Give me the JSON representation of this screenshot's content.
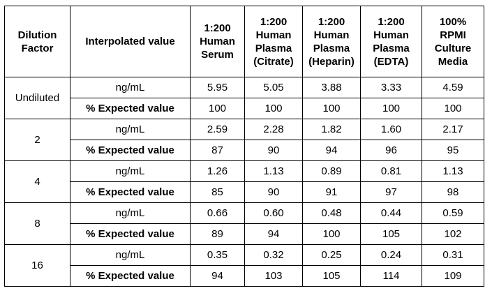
{
  "table": {
    "columns": [
      [
        "Dilution",
        "Factor"
      ],
      [
        "Interpolated value"
      ],
      [
        "1:200",
        "Human",
        "Serum"
      ],
      [
        "1:200",
        "Human",
        "Plasma",
        "(Citrate)"
      ],
      [
        "1:200",
        "Human",
        "Plasma",
        "(Heparin)"
      ],
      [
        "1:200",
        "Human",
        "Plasma",
        "(EDTA)"
      ],
      [
        "100%",
        "RPMI",
        "Culture",
        "Media"
      ]
    ],
    "groups": [
      {
        "factor": "Undiluted",
        "rows": [
          {
            "label": "ng/mL",
            "values": [
              "5.95",
              "5.05",
              "3.88",
              "3.33",
              "4.59"
            ]
          },
          {
            "label": "% Expected value",
            "values": [
              "100",
              "100",
              "100",
              "100",
              "100"
            ]
          }
        ]
      },
      {
        "factor": "2",
        "rows": [
          {
            "label": "ng/mL",
            "values": [
              "2.59",
              "2.28",
              "1.82",
              "1.60",
              "2.17"
            ]
          },
          {
            "label": "% Expected value",
            "values": [
              "87",
              "90",
              "94",
              "96",
              "95"
            ]
          }
        ]
      },
      {
        "factor": "4",
        "rows": [
          {
            "label": "ng/mL",
            "values": [
              "1.26",
              "1.13",
              "0.89",
              "0.81",
              "1.13"
            ]
          },
          {
            "label": "% Expected value",
            "values": [
              "85",
              "90",
              "91",
              "97",
              "98"
            ]
          }
        ]
      },
      {
        "factor": "8",
        "rows": [
          {
            "label": "ng/mL",
            "values": [
              "0.66",
              "0.60",
              "0.48",
              "0.44",
              "0.59"
            ]
          },
          {
            "label": "% Expected value",
            "values": [
              "89",
              "94",
              "100",
              "105",
              "102"
            ]
          }
        ]
      },
      {
        "factor": "16",
        "rows": [
          {
            "label": "ng/mL",
            "values": [
              "0.35",
              "0.32",
              "0.25",
              "0.24",
              "0.31"
            ]
          },
          {
            "label": "% Expected value",
            "values": [
              "94",
              "103",
              "105",
              "114",
              "109"
            ]
          }
        ]
      }
    ]
  }
}
